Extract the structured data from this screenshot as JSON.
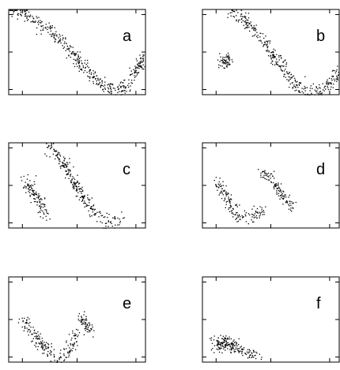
{
  "chart_data": [
    {
      "type": "scatter",
      "label": "a",
      "xlim": [
        0,
        1
      ],
      "ylim": [
        0,
        1
      ],
      "clusters": [
        {
          "kind": "curve",
          "points": [
            [
              0.02,
              1.0
            ],
            [
              0.1,
              0.97
            ],
            [
              0.2,
              0.88
            ],
            [
              0.3,
              0.77
            ],
            [
              0.4,
              0.62
            ],
            [
              0.5,
              0.42
            ],
            [
              0.6,
              0.24
            ],
            [
              0.7,
              0.1
            ],
            [
              0.78,
              0.05
            ],
            [
              0.84,
              0.08
            ],
            [
              0.9,
              0.2
            ],
            [
              0.96,
              0.38
            ],
            [
              0.99,
              0.45
            ]
          ],
          "spread": 0.045,
          "count": 420
        }
      ]
    },
    {
      "type": "scatter",
      "label": "b",
      "xlim": [
        0,
        1
      ],
      "ylim": [
        0,
        1
      ],
      "clusters": [
        {
          "kind": "blob",
          "center": [
            0.17,
            0.4
          ],
          "radius": [
            0.05,
            0.08
          ],
          "count": 60
        },
        {
          "kind": "curve",
          "points": [
            [
              0.2,
              0.97
            ],
            [
              0.28,
              0.93
            ],
            [
              0.36,
              0.8
            ],
            [
              0.45,
              0.62
            ],
            [
              0.55,
              0.4
            ],
            [
              0.64,
              0.2
            ],
            [
              0.72,
              0.08
            ],
            [
              0.8,
              0.03
            ],
            [
              0.88,
              0.06
            ],
            [
              0.95,
              0.18
            ],
            [
              0.99,
              0.27
            ]
          ],
          "spread": 0.045,
          "count": 340
        }
      ]
    },
    {
      "type": "scatter",
      "label": "c",
      "xlim": [
        0,
        1
      ],
      "ylim": [
        0,
        1
      ],
      "clusters": [
        {
          "kind": "curve",
          "points": [
            [
              0.1,
              0.56
            ],
            [
              0.15,
              0.5
            ],
            [
              0.2,
              0.35
            ],
            [
              0.25,
              0.22
            ],
            [
              0.28,
              0.15
            ]
          ],
          "spread": 0.05,
          "count": 110
        },
        {
          "kind": "curve",
          "points": [
            [
              0.28,
              0.97
            ],
            [
              0.35,
              0.88
            ],
            [
              0.42,
              0.7
            ],
            [
              0.5,
              0.48
            ],
            [
              0.57,
              0.3
            ],
            [
              0.63,
              0.17
            ],
            [
              0.7,
              0.1
            ],
            [
              0.78,
              0.08
            ],
            [
              0.83,
              0.09
            ]
          ],
          "spread": 0.045,
          "count": 260
        }
      ]
    },
    {
      "type": "scatter",
      "label": "d",
      "xlim": [
        0,
        1
      ],
      "ylim": [
        0,
        1
      ],
      "clusters": [
        {
          "kind": "curve",
          "points": [
            [
              0.1,
              0.56
            ],
            [
              0.14,
              0.48
            ],
            [
              0.18,
              0.34
            ],
            [
              0.22,
              0.22
            ],
            [
              0.28,
              0.13
            ],
            [
              0.34,
              0.11
            ],
            [
              0.4,
              0.17
            ],
            [
              0.44,
              0.23
            ]
          ],
          "spread": 0.045,
          "count": 150
        },
        {
          "kind": "curve",
          "points": [
            [
              0.43,
              0.68
            ],
            [
              0.5,
              0.57
            ],
            [
              0.56,
              0.44
            ],
            [
              0.62,
              0.32
            ],
            [
              0.66,
              0.24
            ]
          ],
          "spread": 0.04,
          "count": 110
        }
      ]
    },
    {
      "type": "scatter",
      "label": "e",
      "xlim": [
        0,
        1
      ],
      "ylim": [
        0,
        1
      ],
      "clusters": [
        {
          "kind": "curve",
          "points": [
            [
              0.1,
              0.52
            ],
            [
              0.15,
              0.42
            ],
            [
              0.2,
              0.3
            ],
            [
              0.26,
              0.18
            ],
            [
              0.31,
              0.09
            ],
            [
              0.36,
              0.06
            ],
            [
              0.42,
              0.12
            ],
            [
              0.47,
              0.24
            ],
            [
              0.5,
              0.35
            ]
          ],
          "spread": 0.045,
          "count": 190
        },
        {
          "kind": "curve",
          "points": [
            [
              0.5,
              0.55
            ],
            [
              0.54,
              0.5
            ],
            [
              0.57,
              0.43
            ],
            [
              0.6,
              0.36
            ]
          ],
          "spread": 0.04,
          "count": 60
        }
      ]
    },
    {
      "type": "scatter",
      "label": "f",
      "xlim": [
        0,
        1
      ],
      "ylim": [
        0,
        1
      ],
      "clusters": [
        {
          "kind": "blob",
          "center": [
            0.16,
            0.22
          ],
          "radius": [
            0.09,
            0.11
          ],
          "count": 120
        },
        {
          "kind": "curve",
          "points": [
            [
              0.2,
              0.2
            ],
            [
              0.28,
              0.14
            ],
            [
              0.35,
              0.1
            ],
            [
              0.4,
              0.08
            ]
          ],
          "spread": 0.04,
          "count": 70
        }
      ]
    }
  ]
}
